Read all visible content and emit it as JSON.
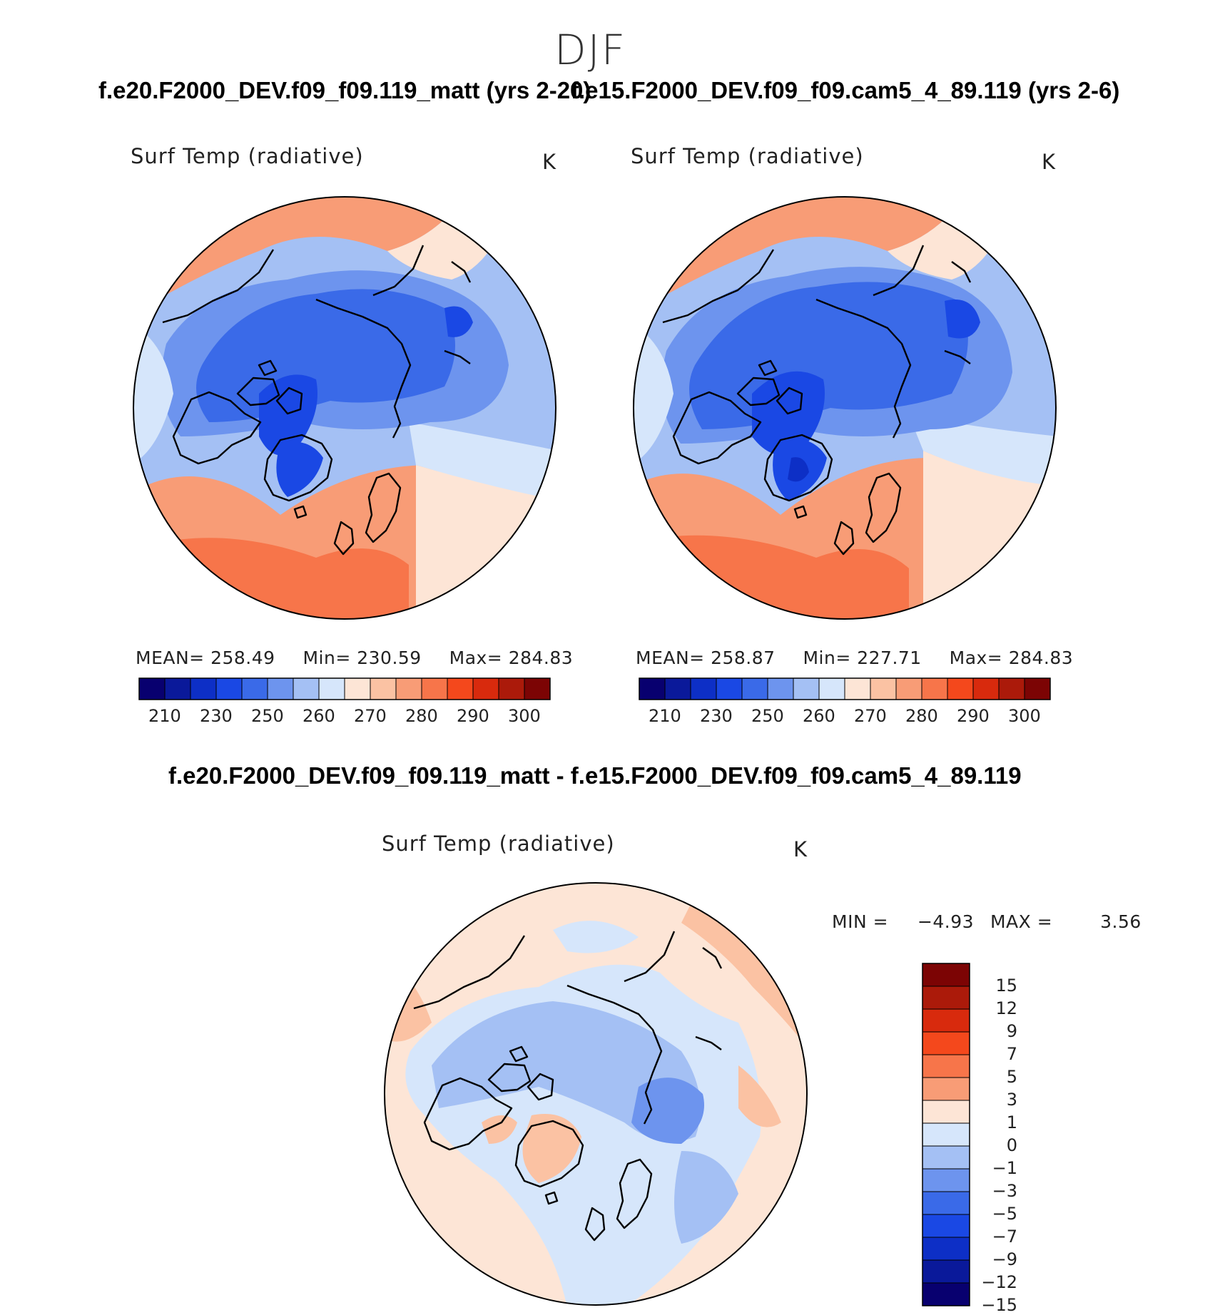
{
  "figure": {
    "title": "DJF",
    "difference_title": "f.e20.F2000_DEV.f09_f09.119_matt - f.e15.F2000_DEV.f09_f09.cam5_4_89.119"
  },
  "panels": [
    {
      "case_title": "f.e20.F2000_DEV.f09_f09.119_matt (yrs 2-20)",
      "variable": "Surf Temp (radiative)",
      "units": "K",
      "mean_label": "MEAN=",
      "mean": "258.49",
      "min_label": "Min=",
      "min": "230.59",
      "max_label": "Max=",
      "max": "284.83"
    },
    {
      "case_title": "f.e15.F2000_DEV.f09_f09.cam5_4_89.119 (yrs 2-6)",
      "variable": "Surf Temp (radiative)",
      "units": "K",
      "mean_label": "MEAN=",
      "mean": "258.87",
      "min_label": "Min=",
      "min": "227.71",
      "max_label": "Max=",
      "max": "284.83"
    }
  ],
  "difference_panel": {
    "variable": "Surf Temp (radiative)",
    "units": "K",
    "min_label": "MIN  =",
    "min": "−4.93",
    "max_label": "MAX  =",
    "max": "3.56"
  },
  "colors": {
    "abs_scale": [
      "#08006f",
      "#0a199a",
      "#0d2fc6",
      "#1a48e4",
      "#3a6ae8",
      "#6d94ee",
      "#a4c0f4",
      "#d6e6fb",
      "#fde5d6",
      "#fbc2a3",
      "#f89c76",
      "#f7754a",
      "#f4481c",
      "#d82a0d",
      "#ab1a0a",
      "#7c0404"
    ],
    "diff_scale": [
      "#7c0404",
      "#ab1a0a",
      "#d82a0d",
      "#f4481c",
      "#f7754a",
      "#f89c76",
      "#fde5d6",
      "#d6e6fb",
      "#a4c0f4",
      "#6d94ee",
      "#3a6ae8",
      "#1a48e4",
      "#0d2fc6",
      "#0a199a",
      "#08006f"
    ],
    "land_outline": "#000000"
  },
  "chart_data": [
    {
      "type": "heatmap",
      "title": "Surf Temp (radiative)",
      "projection": "north polar stereographic",
      "units": "K",
      "colorbar_ticks": [
        "210",
        "230",
        "250",
        "260",
        "270",
        "280",
        "290",
        "300"
      ],
      "levels": [
        210,
        220,
        230,
        240,
        250,
        255,
        260,
        265,
        270,
        275,
        280,
        285,
        290,
        295,
        300
      ],
      "mean": 258.49,
      "min": 230.59,
      "max": 284.83
    },
    {
      "type": "heatmap",
      "title": "Surf Temp (radiative)",
      "projection": "north polar stereographic",
      "units": "K",
      "colorbar_ticks": [
        "210",
        "230",
        "250",
        "260",
        "270",
        "280",
        "290",
        "300"
      ],
      "levels": [
        210,
        220,
        230,
        240,
        250,
        255,
        260,
        265,
        270,
        275,
        280,
        285,
        290,
        295,
        300
      ],
      "mean": 258.87,
      "min": 227.71,
      "max": 284.83
    },
    {
      "type": "heatmap",
      "title": "Surf Temp (radiative)",
      "projection": "north polar stereographic",
      "units": "K",
      "colorbar_ticks": [
        "15",
        "12",
        "9",
        "7",
        "5",
        "3",
        "1",
        "0",
        "−1",
        "−3",
        "−5",
        "−7",
        "−9",
        "−12",
        "−15"
      ],
      "min": -4.93,
      "max": 3.56
    }
  ]
}
